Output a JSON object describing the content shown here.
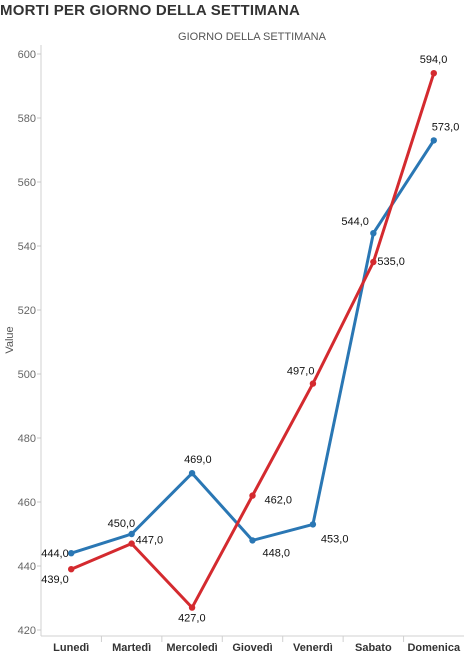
{
  "page_title": "MORTI PER GIORNO DELLA SETTIMANA",
  "chart_data": {
    "type": "line",
    "title": "GIORNO DELLA SETTIMANA",
    "ylabel": "Value",
    "xlabel": "",
    "categories": [
      "Lunedì",
      "Martedì",
      "Mercoledì",
      "Giovedì",
      "Venerdì",
      "Sabato",
      "Domenica"
    ],
    "ylim": [
      420,
      600
    ],
    "yticks": [
      420,
      440,
      460,
      480,
      500,
      520,
      540,
      560,
      580,
      600
    ],
    "grid": false,
    "series": [
      {
        "color": "#2a77b4",
        "values": [
          444.0,
          450.0,
          469.0,
          448.0,
          453.0,
          544.0,
          573.0
        ],
        "labels": [
          "444,0",
          "450,0",
          "469,0",
          "448,0",
          "453,0",
          "544,0",
          "573,0"
        ]
      },
      {
        "color": "#d42a2f",
        "values": [
          439.0,
          447.0,
          427.0,
          462.0,
          497.0,
          535.0,
          594.0
        ],
        "labels": [
          "439,0",
          "447,0",
          "427,0",
          "462,0",
          "497,0",
          "535,0",
          "594,0"
        ]
      }
    ]
  }
}
